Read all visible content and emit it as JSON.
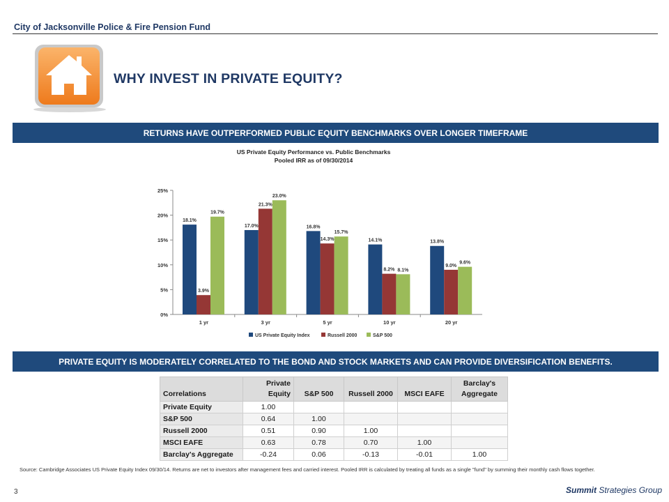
{
  "header": {
    "org": "City of Jacksonville Police & Fire Pension Fund",
    "title": "WHY INVEST IN PRIVATE EQUITY?"
  },
  "icon": "home-icon",
  "banner1": "RETURNS HAVE OUTPERFORMED PUBLIC EQUITY BENCHMARKS OVER LONGER TIMEFRAME",
  "banner2": "PRIVATE EQUITY IS MODERATELY CORRELATED TO THE BOND AND STOCK MARKETS AND CAN PROVIDE DIVERSIFICATION BENEFITS.",
  "chart_data": {
    "type": "bar",
    "title": "US Private Equity Performance vs. Public Benchmarks",
    "subtitle": "Pooled IRR as of 09/30/2014",
    "categories": [
      "1 yr",
      "3 yr",
      "5 yr",
      "10 yr",
      "20 yr"
    ],
    "series": [
      {
        "name": "US Private Equity Index",
        "color": "#1f497d",
        "values": [
          18.1,
          17.0,
          16.8,
          14.1,
          13.8
        ]
      },
      {
        "name": "Russell 2000",
        "color": "#953735",
        "values": [
          3.9,
          21.3,
          14.3,
          8.2,
          9.0
        ]
      },
      {
        "name": "S&P 500",
        "color": "#9bbb59",
        "values": [
          19.7,
          23.0,
          15.7,
          8.1,
          9.6
        ]
      }
    ],
    "yticks": [
      "0%",
      "5%",
      "10%",
      "15%",
      "20%",
      "25%"
    ],
    "ylim": [
      0,
      25
    ],
    "legend": "bottom",
    "grid": false
  },
  "table": {
    "headers": [
      "Correlations",
      "Private Equity",
      "S&P 500",
      "Russell 2000",
      "MSCI EAFE",
      "Barclay's Aggregate"
    ],
    "rows": [
      [
        "Private Equity",
        "1.00",
        "",
        "",
        "",
        ""
      ],
      [
        "S&P 500",
        "0.64",
        "1.00",
        "",
        "",
        ""
      ],
      [
        "Russell 2000",
        "0.51",
        "0.90",
        "1.00",
        "",
        ""
      ],
      [
        "MSCI EAFE",
        "0.63",
        "0.78",
        "0.70",
        "1.00",
        ""
      ],
      [
        "Barclay's Aggregate",
        "-0.24",
        "0.06",
        "-0.13",
        "-0.01",
        "1.00"
      ]
    ]
  },
  "source": "Source: Cambridge Associates US Private Equity Index 09/30/14. Returns are net to investors after management fees and carried interest. Pooled IRR is calculated by treating all funds as a single \"fund\" by summing their monthly cash flows together.",
  "page_number": "3",
  "logo": {
    "part1": "Summit",
    "part2": "Strategies Group"
  }
}
